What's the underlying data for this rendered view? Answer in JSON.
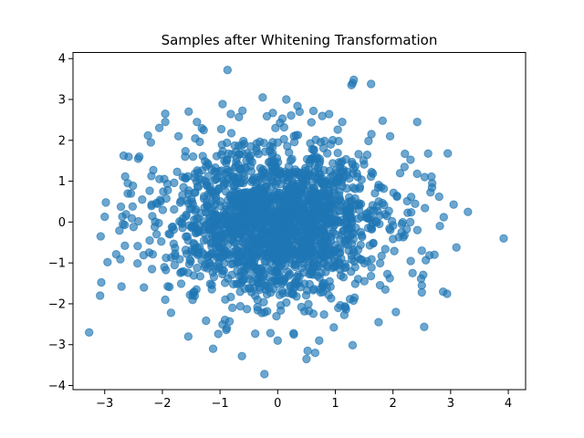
{
  "chart_data": {
    "type": "scatter",
    "title": "Samples after Whitening Transformation",
    "xlabel": "",
    "ylabel": "",
    "xlim": [
      -3.55,
      4.3
    ],
    "ylim": [
      -4.1,
      4.15
    ],
    "xticks": [
      -3,
      -2,
      -1,
      0,
      1,
      2,
      3,
      4
    ],
    "yticks": [
      -4,
      -3,
      -2,
      -1,
      0,
      1,
      2,
      3,
      4
    ],
    "xtick_labels": [
      "−3",
      "−2",
      "−1",
      "0",
      "1",
      "2",
      "3",
      "4"
    ],
    "ytick_labels": [
      "−4",
      "−3",
      "−2",
      "−1",
      "0",
      "1",
      "2",
      "3",
      "4"
    ],
    "grid": false,
    "legend": "none",
    "marker_color": "#1f77b4",
    "marker_alpha": 0.65,
    "sample_count_approx": 2000,
    "distribution": "approximately standard bivariate normal (mean 0, identity covariance)",
    "series": [
      {
        "values": [
          [
            -3.27,
            -2.7
          ],
          [
            -3.08,
            -1.8
          ],
          [
            -3.07,
            -0.35
          ],
          [
            -3.0,
            0.13
          ],
          [
            -2.98,
            0.48
          ],
          [
            -2.65,
            -0.58
          ],
          [
            -2.63,
            0.19
          ],
          [
            -2.6,
            0.7
          ],
          [
            -2.6,
            0.95
          ],
          [
            -2.5,
            -0.12
          ],
          [
            -2.42,
            1.55
          ],
          [
            -2.4,
            1.6
          ],
          [
            -2.35,
            0.55
          ],
          [
            -2.32,
            -1.6
          ],
          [
            -2.25,
            2.12
          ],
          [
            -2.22,
            -0.45
          ],
          [
            -2.2,
            1.95
          ],
          [
            -2.18,
            -1.15
          ],
          [
            -2.1,
            -0.3
          ],
          [
            -2.05,
            1.05
          ],
          [
            -1.95,
            2.65
          ],
          [
            -1.95,
            2.45
          ],
          [
            -1.95,
            -1.9
          ],
          [
            -1.85,
            -2.22
          ],
          [
            -1.72,
            2.1
          ],
          [
            -1.4,
            2.45
          ],
          [
            -1.55,
            -2.8
          ],
          [
            -1.12,
            -3.1
          ],
          [
            -0.87,
            3.72
          ],
          [
            -0.62,
            -3.28
          ],
          [
            -0.26,
            3.05
          ],
          [
            -0.23,
            -3.72
          ],
          [
            0.15,
            3.0
          ],
          [
            0.38,
            2.7
          ],
          [
            0.62,
            2.72
          ],
          [
            0.65,
            -3.2
          ],
          [
            0.5,
            -3.35
          ],
          [
            0.52,
            -3.15
          ],
          [
            0.28,
            -2.75
          ],
          [
            0.0,
            -2.9
          ],
          [
            0.92,
            1.9
          ],
          [
            1.05,
            -2.1
          ],
          [
            1.12,
            2.45
          ],
          [
            1.28,
            3.35
          ],
          [
            1.3,
            3.4
          ],
          [
            1.32,
            3.48
          ],
          [
            1.62,
            3.38
          ],
          [
            1.75,
            -2.45
          ],
          [
            1.82,
            2.48
          ],
          [
            1.95,
            2.1
          ],
          [
            2.05,
            -2.2
          ],
          [
            2.2,
            1.35
          ],
          [
            2.42,
            2.45
          ],
          [
            2.5,
            -1.72
          ],
          [
            2.5,
            -1.55
          ],
          [
            2.55,
            1.1
          ],
          [
            2.68,
            0.95
          ],
          [
            2.72,
            -0.8
          ],
          [
            2.8,
            0.62
          ],
          [
            2.88,
            0.12
          ],
          [
            2.95,
            1.68
          ],
          [
            3.1,
            -0.62
          ],
          [
            3.3,
            0.25
          ],
          [
            3.92,
            -0.4
          ],
          [
            2.5,
            -0.7
          ],
          [
            2.3,
            0.0
          ],
          [
            2.15,
            -0.25
          ],
          [
            1.05,
            -0.95
          ],
          [
            -1.05,
            1.08
          ],
          [
            0.72,
            -2.9
          ]
        ]
      }
    ]
  }
}
